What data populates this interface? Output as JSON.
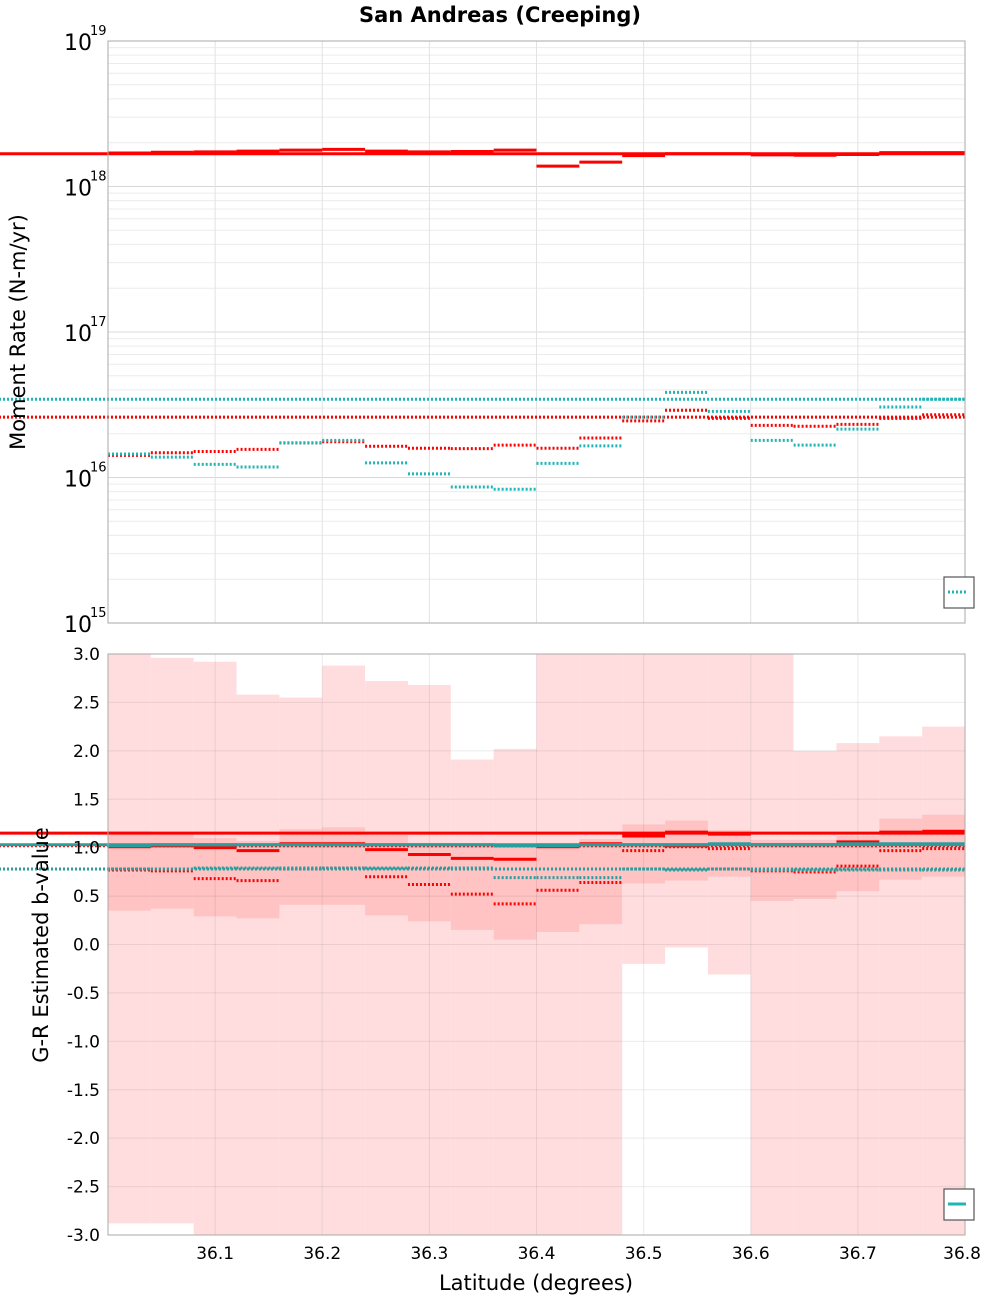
{
  "chart_data": [
    {
      "type": "line",
      "title": "San Andreas (Creeping)",
      "ylabel": "Moment Rate (N-m/yr)",
      "yscale": "log",
      "ylim": [
        1000000000000000.0,
        1e+19
      ],
      "xlim": [
        36.0,
        36.8
      ],
      "y_ticks": [
        {
          "base": "10",
          "exp": "15"
        },
        {
          "base": "10",
          "exp": "16"
        },
        {
          "base": "10",
          "exp": "17"
        },
        {
          "base": "10",
          "exp": "18"
        },
        {
          "base": "10",
          "exp": "19"
        }
      ],
      "grid": true,
      "legend": "bottom-right",
      "bin_edges": [
        36.0,
        36.04,
        36.08,
        36.12,
        36.16,
        36.2,
        36.24,
        36.28,
        36.32,
        36.36,
        36.4,
        36.44,
        36.48,
        36.52,
        36.56,
        36.6,
        36.64,
        36.68,
        36.72,
        36.76,
        36.8
      ],
      "series": [
        {
          "color": "#ff0000",
          "style": "solid",
          "values": [
            1.7e+18,
            1.72e+18,
            1.73e+18,
            1.75e+18,
            1.78e+18,
            1.8e+18,
            1.75e+18,
            1.73e+18,
            1.74e+18,
            1.78e+18,
            1.38e+18,
            1.47e+18,
            1.63e+18,
            1.68e+18,
            1.68e+18,
            1.65e+18,
            1.64e+18,
            1.66e+18,
            1.71e+18,
            1.71e+18,
            1.68e+18
          ]
        },
        {
          "color": "#ff0000",
          "style": "dotted",
          "values": [
            1.42e+16,
            1.48e+16,
            1.51e+16,
            1.56e+16,
            1.73e+16,
            1.76e+16,
            1.64e+16,
            1.59e+16,
            1.58e+16,
            1.67e+16,
            1.59e+16,
            1.87e+16,
            2.45e+16,
            2.9e+16,
            2.55e+16,
            2.28e+16,
            2.25e+16,
            2.32e+16,
            2.55e+16,
            2.7e+16,
            2.6e+16
          ]
        },
        {
          "color": "#1fb5b5",
          "style": "dotted",
          "values": [
            1.45e+16,
            1.38e+16,
            1.23e+16,
            1.18e+16,
            1.73e+16,
            1.8e+16,
            1.26e+16,
            1.06e+16,
            8600000000000000.0,
            8300000000000000.0,
            1.25e+16,
            1.65e+16,
            2.6e+16,
            3.85e+16,
            2.85e+16,
            1.8e+16,
            1.67e+16,
            2.15e+16,
            3.05e+16,
            3.45e+16,
            3.45e+16
          ]
        }
      ]
    },
    {
      "type": "line",
      "xlabel": "Latitude (degrees)",
      "ylabel": "G-R Estimated b-value",
      "ylim": [
        -3.0,
        3.0
      ],
      "xlim": [
        36.0,
        36.8
      ],
      "x_ticks": [
        "36.1",
        "36.2",
        "36.3",
        "36.4",
        "36.5",
        "36.6",
        "36.7",
        "36.8"
      ],
      "y_ticks": [
        "3.0",
        "2.5",
        "2.0",
        "1.5",
        "1.0",
        "0.5",
        "0.0",
        "-0.5",
        "-1.0",
        "-1.5",
        "-2.0",
        "-2.5",
        "-3.0"
      ],
      "grid": true,
      "legend": "bottom-right",
      "bin_edges": [
        36.0,
        36.04,
        36.08,
        36.12,
        36.16,
        36.2,
        36.24,
        36.28,
        36.32,
        36.36,
        36.4,
        36.44,
        36.48,
        36.52,
        36.56,
        36.6,
        36.64,
        36.68,
        36.72,
        36.76,
        36.8
      ],
      "outer_band_upper": [
        3.0,
        2.96,
        2.92,
        2.58,
        2.55,
        2.88,
        2.72,
        2.68,
        1.91,
        2.02,
        3.0,
        3.0,
        3.0,
        3.0,
        3.0,
        3.0,
        2.0,
        2.08,
        2.15,
        2.25,
        2.25
      ],
      "outer_band_lower": [
        -2.88,
        -2.88,
        -3.0,
        -3.0,
        -3.0,
        -3.0,
        -3.0,
        -3.0,
        -3.0,
        -3.0,
        -3.0,
        -3.0,
        -0.2,
        -0.03,
        -0.31,
        -3.0,
        -3.0,
        -3.0,
        -3.0,
        -3.0,
        -3.0
      ],
      "inner_band_upper": [
        1.17,
        1.16,
        1.1,
        1.07,
        1.19,
        1.21,
        1.13,
        1.05,
        1.03,
        1.03,
        1.05,
        1.09,
        1.24,
        1.28,
        1.18,
        1.08,
        1.08,
        1.12,
        1.3,
        1.34,
        1.38
      ],
      "inner_band_lower": [
        0.35,
        0.37,
        0.29,
        0.27,
        0.41,
        0.41,
        0.3,
        0.24,
        0.15,
        0.05,
        0.13,
        0.21,
        0.63,
        0.66,
        0.7,
        0.45,
        0.47,
        0.55,
        0.67,
        0.7,
        0.73
      ],
      "series": [
        {
          "color": "#ff0000",
          "style": "solid",
          "values": [
            1.01,
            1.02,
            1.0,
            0.97,
            1.04,
            1.04,
            0.98,
            0.93,
            0.89,
            0.88,
            1.01,
            1.04,
            1.12,
            1.16,
            1.14,
            1.03,
            1.03,
            1.06,
            1.16,
            1.17,
            1.15
          ]
        },
        {
          "color": "#ff0000",
          "style": "dotted",
          "values": [
            0.77,
            0.76,
            0.68,
            0.66,
            0.78,
            0.79,
            0.7,
            0.62,
            0.52,
            0.42,
            0.56,
            0.64,
            0.97,
            1.01,
            0.99,
            0.76,
            0.75,
            0.81,
            0.97,
            0.99,
            1.02
          ]
        },
        {
          "color": "#2a9d9d",
          "style": "solid",
          "values": [
            1.02,
            1.03,
            1.03,
            1.03,
            1.03,
            1.03,
            1.03,
            1.03,
            1.03,
            1.02,
            1.02,
            1.03,
            1.03,
            1.03,
            1.04,
            1.03,
            1.03,
            1.04,
            1.04,
            1.04,
            1.03
          ]
        },
        {
          "color": "#2a9d9d",
          "style": "dotted",
          "values": [
            0.78,
            0.78,
            0.79,
            0.79,
            0.79,
            0.79,
            0.79,
            0.79,
            0.79,
            0.69,
            0.69,
            0.69,
            0.78,
            0.77,
            0.78,
            0.77,
            0.77,
            0.77,
            0.77,
            0.77,
            0.78
          ]
        }
      ]
    }
  ]
}
